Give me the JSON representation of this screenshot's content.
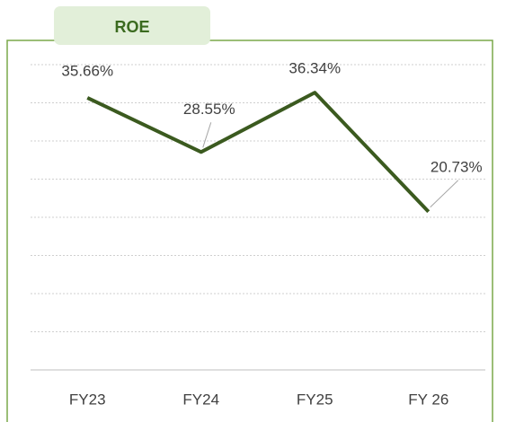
{
  "chart_data": {
    "type": "line",
    "title": "ROE",
    "categories": [
      "FY23",
      "FY24",
      "FY25",
      "FY 26"
    ],
    "values": [
      35.66,
      28.55,
      36.34,
      20.73
    ],
    "value_labels": [
      "35.66%",
      "28.55%",
      "36.34%",
      "20.73%"
    ],
    "color": "#3b5a1f",
    "ylim": [
      0,
      40
    ],
    "yticks": [
      0,
      5,
      10,
      15,
      20,
      25,
      30,
      35,
      40
    ],
    "grid": true
  }
}
